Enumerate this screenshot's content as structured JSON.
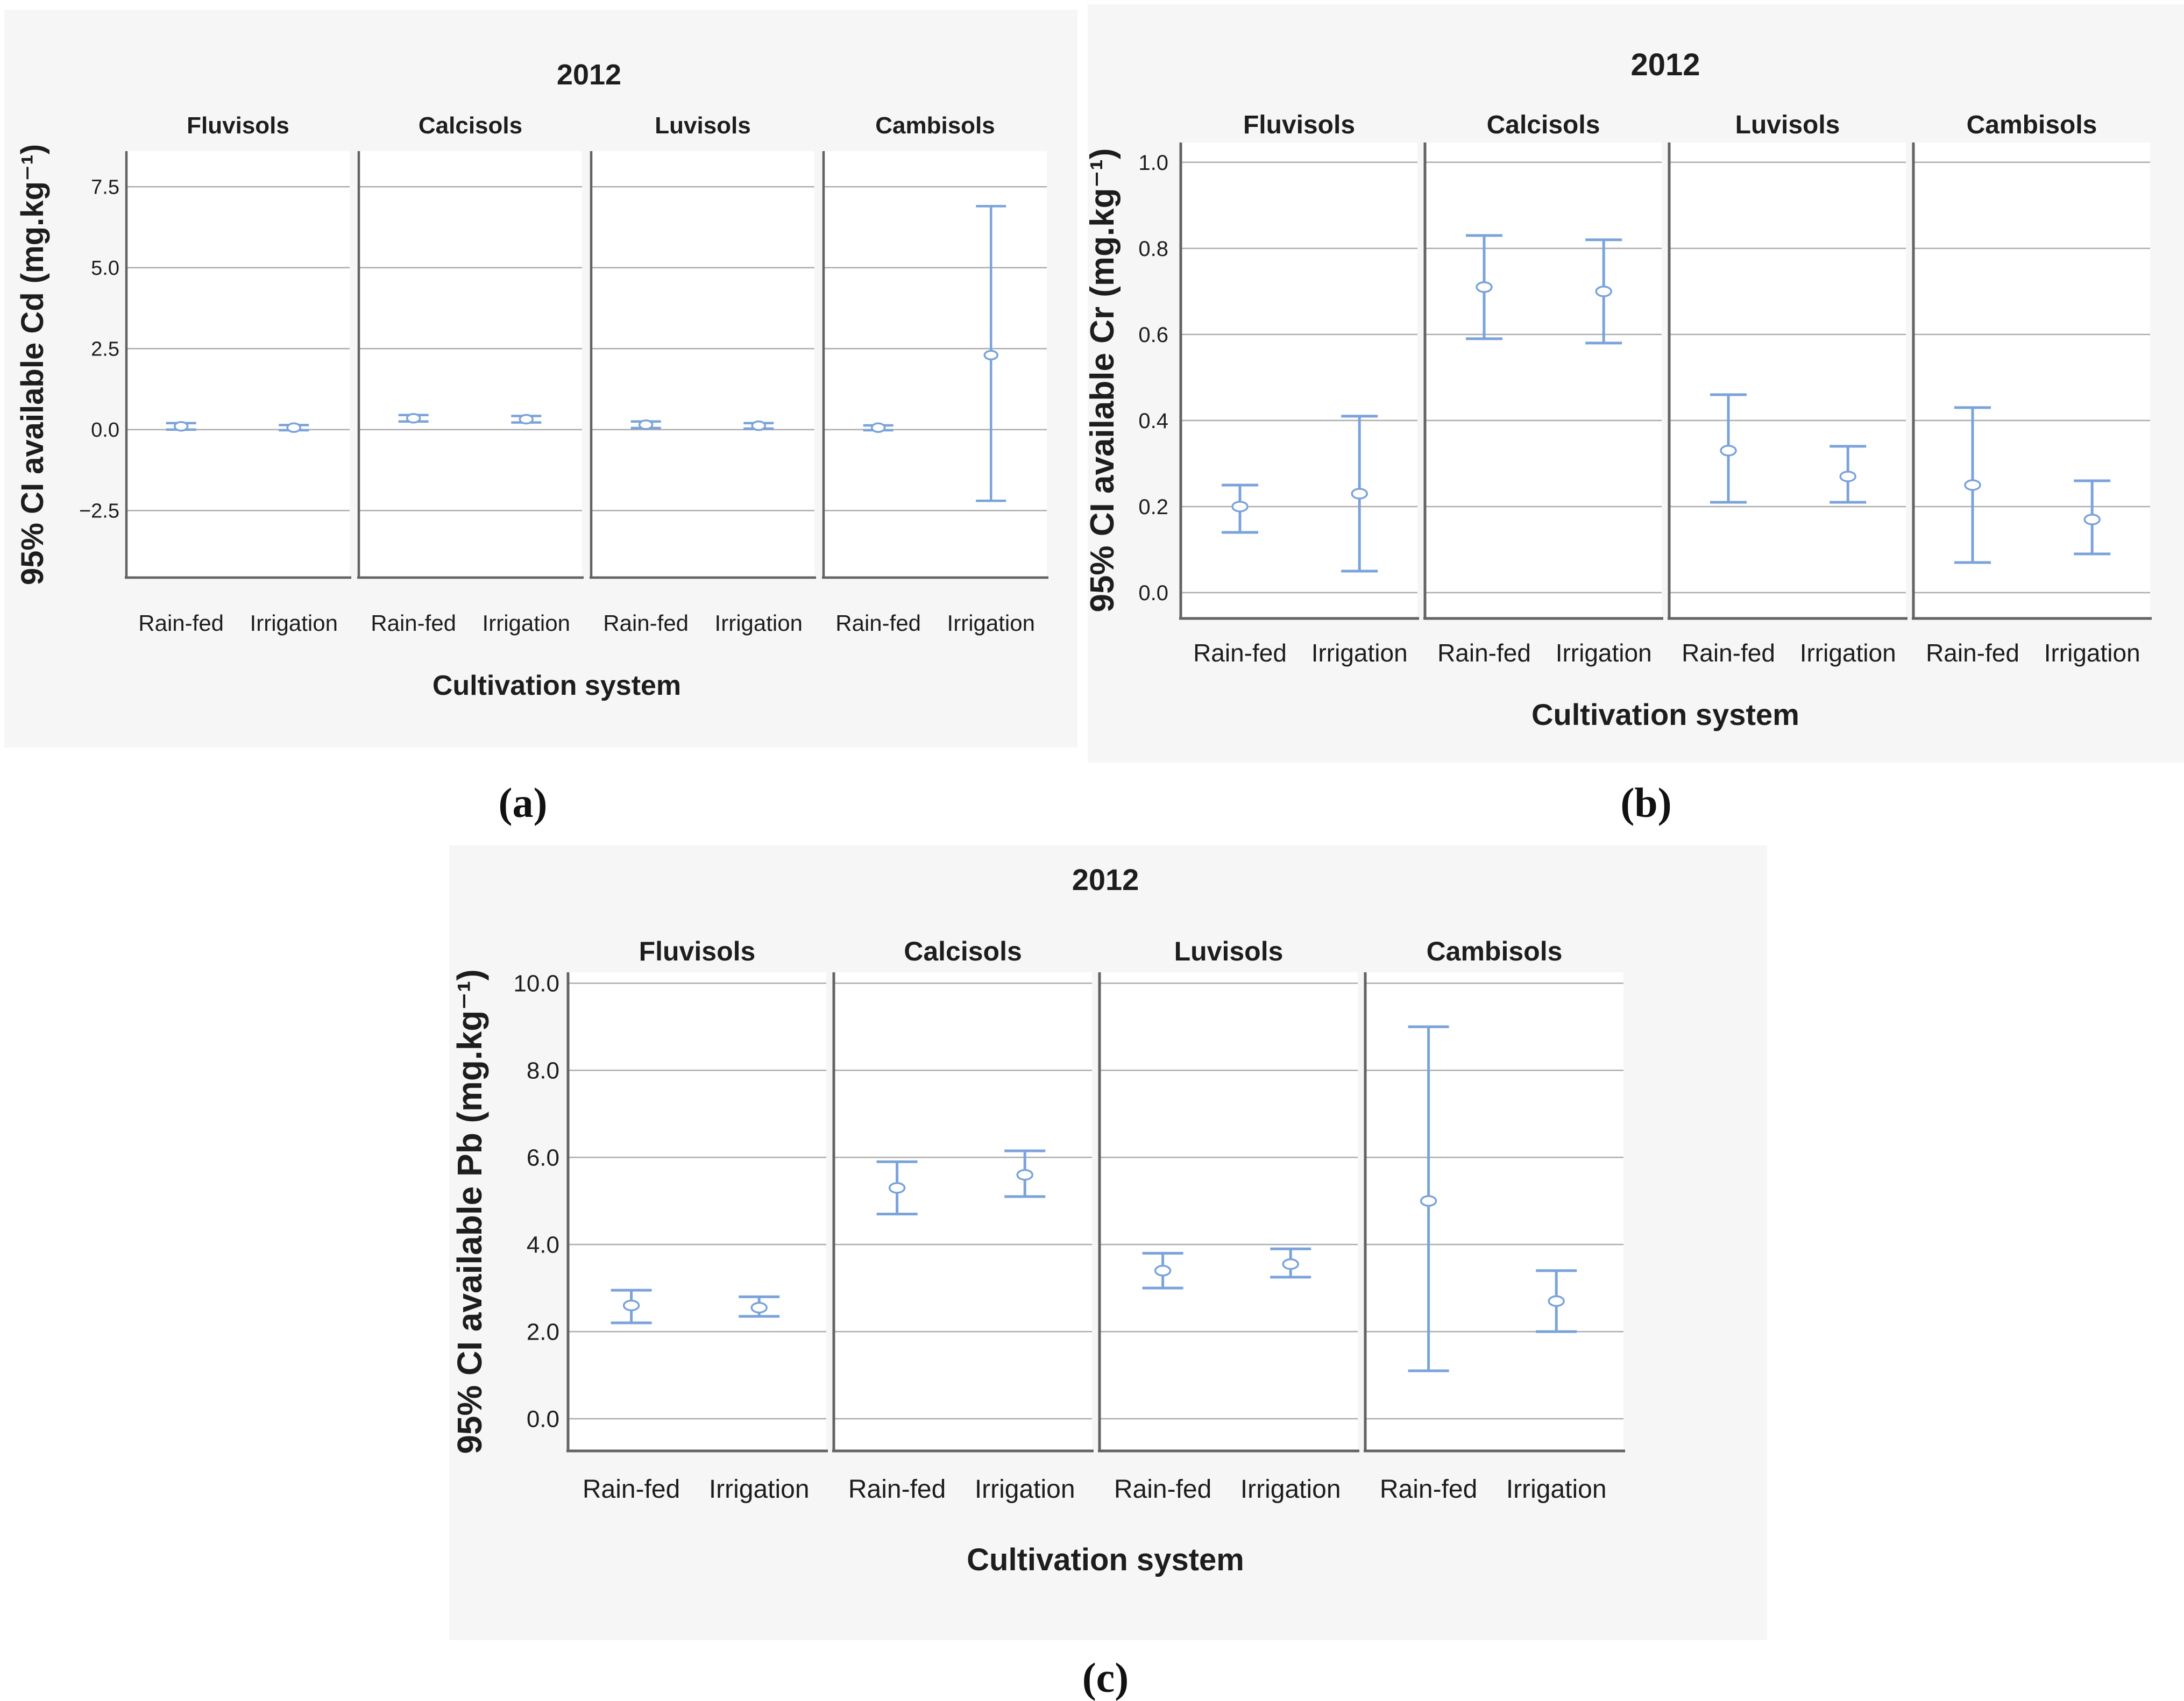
{
  "figure": {
    "captions": {
      "a": "(a)",
      "b": "(b)",
      "c": "(c)"
    }
  },
  "colors": {
    "errorbar_blue": "#7ba3da",
    "gridline_gray": "#adadad",
    "axis_gray": "#636363",
    "text_black": "#1d1d1d",
    "figure_background": "#f6f6f6",
    "panel_background": "#ffffff"
  },
  "chart_data": [
    {
      "id": "a",
      "type": "errorbar",
      "title": "2012",
      "ylabel": "95% CI available Cd (mg.kg⁻¹)",
      "xlabel": "Cultivation system",
      "facets": [
        "Fluvisols",
        "Calcisols",
        "Luvisols",
        "Cambisols"
      ],
      "categories": [
        "Rain-fed",
        "Irrigation"
      ],
      "grid": true,
      "legend_position": "none",
      "ylim": [
        -4.57,
        8.6
      ],
      "yticks": [
        {
          "value": 7.5,
          "label": "7.5"
        },
        {
          "value": 5.0,
          "label": "5.0"
        },
        {
          "value": 2.5,
          "label": "2.5"
        },
        {
          "value": 0.0,
          "label": "0.0"
        },
        {
          "value": -2.5,
          "label": "−2.5"
        }
      ],
      "series": [
        {
          "facet": "Fluvisols",
          "points": [
            {
              "category": "Rain-fed",
              "mean": 0.1,
              "lo": 0.0,
              "hi": 0.2
            },
            {
              "category": "Irrigation",
              "mean": 0.06,
              "lo": -0.02,
              "hi": 0.14
            }
          ]
        },
        {
          "facet": "Calcisols",
          "points": [
            {
              "category": "Rain-fed",
              "mean": 0.35,
              "lo": 0.25,
              "hi": 0.45
            },
            {
              "category": "Irrigation",
              "mean": 0.32,
              "lo": 0.22,
              "hi": 0.42
            }
          ]
        },
        {
          "facet": "Luvisols",
          "points": [
            {
              "category": "Rain-fed",
              "mean": 0.15,
              "lo": 0.05,
              "hi": 0.25
            },
            {
              "category": "Irrigation",
              "mean": 0.12,
              "lo": 0.03,
              "hi": 0.2
            }
          ]
        },
        {
          "facet": "Cambisols",
          "points": [
            {
              "category": "Rain-fed",
              "mean": 0.06,
              "lo": -0.02,
              "hi": 0.13
            },
            {
              "category": "Irrigation",
              "mean": 2.3,
              "lo": -2.2,
              "hi": 6.9
            }
          ]
        }
      ]
    },
    {
      "id": "b",
      "type": "errorbar",
      "title": "2012",
      "ylabel": "95% CI available Cr (mg.kg⁻¹)",
      "xlabel": "Cultivation system",
      "facets": [
        "Fluvisols",
        "Calcisols",
        "Luvisols",
        "Cambisols"
      ],
      "categories": [
        "Rain-fed",
        "Irrigation"
      ],
      "grid": true,
      "legend_position": "none",
      "ylim": [
        -0.06,
        1.046
      ],
      "yticks": [
        {
          "value": 1.0,
          "label": "1.0"
        },
        {
          "value": 0.8,
          "label": "0.8"
        },
        {
          "value": 0.6,
          "label": "0.6"
        },
        {
          "value": 0.4,
          "label": "0.4"
        },
        {
          "value": 0.2,
          "label": "0.2"
        },
        {
          "value": 0.0,
          "label": "0.0"
        }
      ],
      "series": [
        {
          "facet": "Fluvisols",
          "points": [
            {
              "category": "Rain-fed",
              "mean": 0.2,
              "lo": 0.14,
              "hi": 0.25
            },
            {
              "category": "Irrigation",
              "mean": 0.23,
              "lo": 0.05,
              "hi": 0.41
            }
          ]
        },
        {
          "facet": "Calcisols",
          "points": [
            {
              "category": "Rain-fed",
              "mean": 0.71,
              "lo": 0.59,
              "hi": 0.83
            },
            {
              "category": "Irrigation",
              "mean": 0.7,
              "lo": 0.58,
              "hi": 0.82
            }
          ]
        },
        {
          "facet": "Luvisols",
          "points": [
            {
              "category": "Rain-fed",
              "mean": 0.33,
              "lo": 0.21,
              "hi": 0.46
            },
            {
              "category": "Irrigation",
              "mean": 0.27,
              "lo": 0.21,
              "hi": 0.34
            }
          ]
        },
        {
          "facet": "Cambisols",
          "points": [
            {
              "category": "Rain-fed",
              "mean": 0.25,
              "lo": 0.07,
              "hi": 0.43
            },
            {
              "category": "Irrigation",
              "mean": 0.17,
              "lo": 0.09,
              "hi": 0.26
            }
          ]
        }
      ]
    },
    {
      "id": "c",
      "type": "errorbar",
      "title": "2012",
      "ylabel": "95% CI available Pb (mg.kg⁻¹)",
      "xlabel": "Cultivation system",
      "facets": [
        "Fluvisols",
        "Calcisols",
        "Luvisols",
        "Cambisols"
      ],
      "categories": [
        "Rain-fed",
        "Irrigation"
      ],
      "grid": true,
      "legend_position": "none",
      "ylim": [
        -0.74,
        10.25
      ],
      "yticks": [
        {
          "value": 10.0,
          "label": "10.0"
        },
        {
          "value": 8.0,
          "label": "8.0"
        },
        {
          "value": 6.0,
          "label": "6.0"
        },
        {
          "value": 4.0,
          "label": "4.0"
        },
        {
          "value": 2.0,
          "label": "2.0"
        },
        {
          "value": 0.0,
          "label": "0.0"
        }
      ],
      "series": [
        {
          "facet": "Fluvisols",
          "points": [
            {
              "category": "Rain-fed",
              "mean": 2.6,
              "lo": 2.2,
              "hi": 2.95
            },
            {
              "category": "Irrigation",
              "mean": 2.55,
              "lo": 2.35,
              "hi": 2.8
            }
          ]
        },
        {
          "facet": "Calcisols",
          "points": [
            {
              "category": "Rain-fed",
              "mean": 5.3,
              "lo": 4.7,
              "hi": 5.9
            },
            {
              "category": "Irrigation",
              "mean": 5.6,
              "lo": 5.1,
              "hi": 6.15
            }
          ]
        },
        {
          "facet": "Luvisols",
          "points": [
            {
              "category": "Rain-fed",
              "mean": 3.4,
              "lo": 3.0,
              "hi": 3.8
            },
            {
              "category": "Irrigation",
              "mean": 3.55,
              "lo": 3.25,
              "hi": 3.9
            }
          ]
        },
        {
          "facet": "Cambisols",
          "points": [
            {
              "category": "Rain-fed",
              "mean": 5.0,
              "lo": 1.1,
              "hi": 9.0
            },
            {
              "category": "Irrigation",
              "mean": 2.7,
              "lo": 2.0,
              "hi": 3.4
            }
          ]
        }
      ]
    }
  ]
}
